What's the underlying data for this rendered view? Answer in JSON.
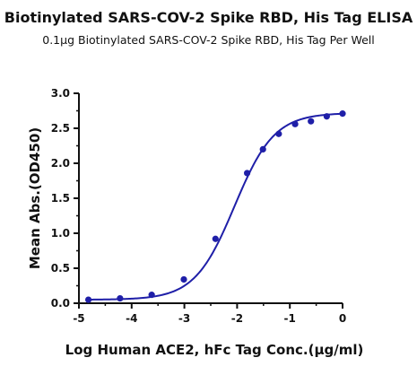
{
  "chart_data": {
    "type": "line",
    "title": "Biotinylated SARS-COV-2 Spike RBD, His Tag ELISA",
    "subtitle": "0.1μg Biotinylated SARS-COV-2 Spike RBD, His Tag Per Well",
    "xlabel": "Log Human ACE2, hFc Tag Conc.(μg/ml)",
    "ylabel": "Mean Abs.(OD450)",
    "xlim": [
      -5,
      0
    ],
    "ylim": [
      0,
      3.0
    ],
    "x_ticks": [
      "-5",
      "-4",
      "-3",
      "-2",
      "-1",
      "0"
    ],
    "y_ticks": [
      "0.0",
      "0.5",
      "1.0",
      "1.5",
      "2.0",
      "2.5",
      "3.0"
    ],
    "grid": false,
    "series": [
      {
        "color": "#1f1fa8",
        "points": [
          {
            "x": -4.82,
            "y": 0.05
          },
          {
            "x": -4.22,
            "y": 0.07
          },
          {
            "x": -3.62,
            "y": 0.12
          },
          {
            "x": -3.01,
            "y": 0.34
          },
          {
            "x": -2.41,
            "y": 0.92
          },
          {
            "x": -1.81,
            "y": 1.86
          },
          {
            "x": -1.51,
            "y": 2.2
          },
          {
            "x": -1.21,
            "y": 2.42
          },
          {
            "x": -0.9,
            "y": 2.56
          },
          {
            "x": -0.6,
            "y": 2.6
          },
          {
            "x": -0.3,
            "y": 2.67
          },
          {
            "x": 0.0,
            "y": 2.71
          }
        ],
        "curve": {
          "bottom": 0.05,
          "top": 2.72,
          "logEC50": -2.05,
          "hill": 1.15
        }
      }
    ]
  }
}
